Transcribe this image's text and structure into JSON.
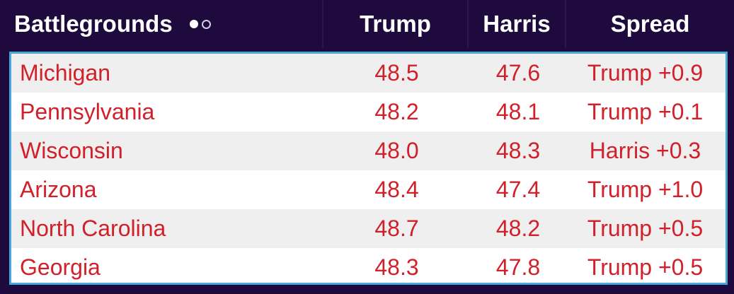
{
  "header": {
    "state_label": "Battlegrounds",
    "trump_label": "Trump",
    "harris_label": "Harris",
    "spread_label": "Spread"
  },
  "rows": [
    {
      "state": "Michigan",
      "trump": "48.5",
      "harris": "47.6",
      "spread": "Trump +0.9"
    },
    {
      "state": "Pennsylvania",
      "trump": "48.2",
      "harris": "48.1",
      "spread": "Trump +0.1"
    },
    {
      "state": "Wisconsin",
      "trump": "48.0",
      "harris": "48.3",
      "spread": "Harris +0.3"
    },
    {
      "state": "Arizona",
      "trump": "48.4",
      "harris": "47.4",
      "spread": "Trump +1.0"
    },
    {
      "state": "North Carolina",
      "trump": "48.7",
      "harris": "48.2",
      "spread": "Trump +0.5"
    },
    {
      "state": "Georgia",
      "trump": "48.3",
      "harris": "47.8",
      "spread": "Trump +0.5"
    }
  ],
  "colors": {
    "header_bg": "#1e0a3c",
    "text_red": "#d1202a",
    "border_blue": "#4aa8d8",
    "row_alt": "#efefef"
  },
  "pager": {
    "total": 2,
    "active": 1
  }
}
